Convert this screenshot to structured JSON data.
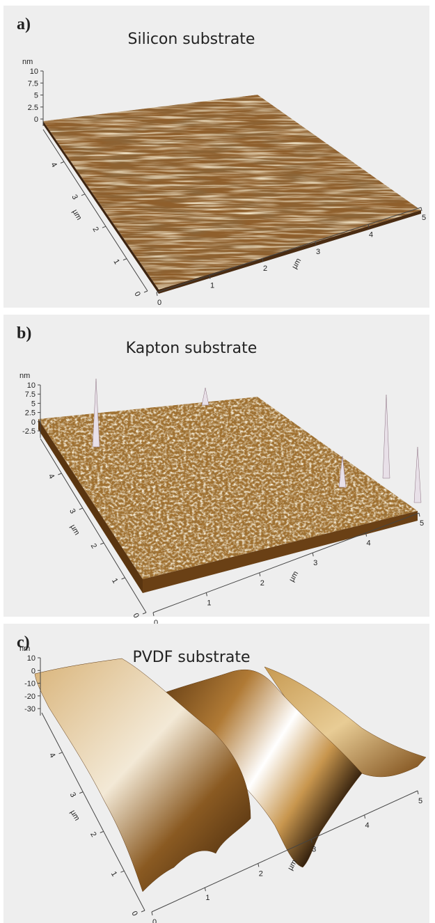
{
  "panels": [
    {
      "label": "a)",
      "title": "Silicon substrate",
      "z_unit": "nm",
      "z_ticks": [
        "10",
        "7.5",
        "5",
        "2.5",
        "0"
      ],
      "y_unit": "µm",
      "y_ticks": [
        "0",
        "1",
        "2",
        "3",
        "4"
      ],
      "x_unit": "µm",
      "x_ticks": [
        "0",
        "1",
        "2",
        "3",
        "4",
        "5"
      ]
    },
    {
      "label": "b)",
      "title": "Kapton substrate",
      "z_unit": "nm",
      "z_ticks": [
        "10",
        "7.5",
        "5",
        "2.5",
        "0",
        "-2.5"
      ],
      "y_unit": "µm",
      "y_ticks": [
        "0",
        "1",
        "2",
        "3",
        "4"
      ],
      "x_unit": "µm",
      "x_ticks": [
        "0",
        "1",
        "2",
        "3",
        "4",
        "5"
      ]
    },
    {
      "label": "c)",
      "title": "PVDF substrate",
      "z_unit": "nm",
      "z_ticks": [
        "10",
        "0",
        "-10",
        "-20",
        "-30"
      ],
      "y_unit": "µm",
      "y_ticks": [
        "0",
        "1",
        "2",
        "3",
        "4"
      ],
      "x_unit": "µm",
      "x_ticks": [
        "0",
        "1",
        "2",
        "3",
        "4",
        "5"
      ]
    }
  ]
}
